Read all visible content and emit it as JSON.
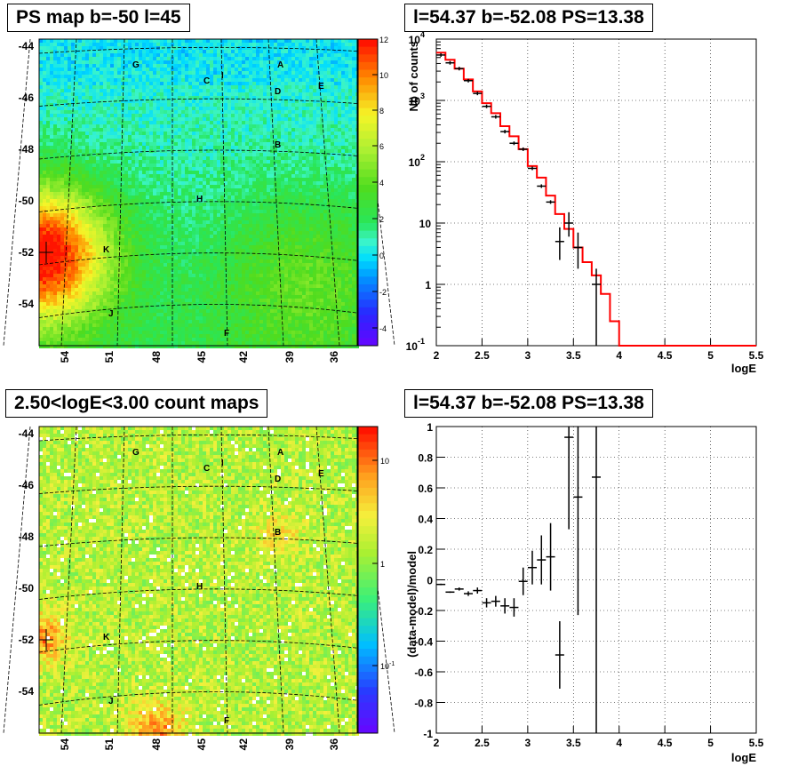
{
  "titles": {
    "ps_map": "PS map b=-50 l=45",
    "count_map": "2.50<logE<3.00 count maps",
    "spectrum": "l=54.37 b=-52.08 PS=13.38",
    "residual": "l=54.37 b=-52.08 PS=13.38"
  },
  "map": {
    "lat_ticks": [
      "-44",
      "-46",
      "-48",
      "-50",
      "-52",
      "-54"
    ],
    "lon_ticks": [
      "54",
      "51",
      "48",
      "45",
      "42",
      "39",
      "36"
    ],
    "sources": [
      {
        "name": "A"
      },
      {
        "name": "B"
      },
      {
        "name": "C"
      },
      {
        "name": "D"
      },
      {
        "name": "E"
      },
      {
        "name": "F"
      },
      {
        "name": "G"
      },
      {
        "name": "H"
      },
      {
        "name": "I"
      },
      {
        "name": "J"
      },
      {
        "name": "K"
      }
    ],
    "ps_palette_ticks": [
      "12",
      "10",
      "8",
      "6",
      "4",
      "2",
      "0",
      "-2",
      "-4"
    ],
    "count_palette_ticks": [
      "10",
      "1",
      "10"
    ],
    "count_palette_exps": [
      "",
      "",
      "-1"
    ]
  },
  "chart_data": [
    {
      "type": "line",
      "title": "l=54.37 b=-52.08 PS=13.38",
      "xlabel": "logE",
      "ylabel": "Nb of counts",
      "log_y": true,
      "xlim": [
        2,
        5.5
      ],
      "ylim": [
        0.1,
        10000
      ],
      "grid": true,
      "x_ticks": [
        "2",
        "2.5",
        "3",
        "3.5",
        "4",
        "4.5",
        "5",
        "5.5"
      ],
      "y_ticks": [
        {
          "base": "10",
          "exp": "-1"
        },
        {
          "base": "1",
          "exp": ""
        },
        {
          "base": "10",
          "exp": ""
        },
        {
          "base": "10",
          "exp": "2"
        },
        {
          "base": "10",
          "exp": "3"
        },
        {
          "base": "10",
          "exp": "4"
        }
      ],
      "model_color": "#ff0000",
      "model_bins": [
        2.0,
        2.1,
        2.2,
        2.3,
        2.4,
        2.5,
        2.6,
        2.7,
        2.8,
        2.9,
        3.0,
        3.1,
        3.2,
        3.3,
        3.4,
        3.5,
        3.6,
        3.7,
        3.8,
        3.9,
        4.0,
        5.5
      ],
      "model_values": [
        6000,
        4600,
        3300,
        2200,
        1400,
        900,
        620,
        380,
        260,
        160,
        85,
        55,
        28,
        14,
        8,
        4,
        2.3,
        1.4,
        0.7,
        0.25,
        0.1
      ],
      "data_points": [
        {
          "x": 2.05,
          "y": 5500
        },
        {
          "x": 2.15,
          "y": 4100
        },
        {
          "x": 2.25,
          "y": 3300
        },
        {
          "x": 2.35,
          "y": 2100
        },
        {
          "x": 2.45,
          "y": 1300
        },
        {
          "x": 2.55,
          "y": 800
        },
        {
          "x": 2.65,
          "y": 540
        },
        {
          "x": 2.75,
          "y": 310
        },
        {
          "x": 2.85,
          "y": 200
        },
        {
          "x": 2.95,
          "y": 160
        },
        {
          "x": 3.05,
          "y": 78
        },
        {
          "x": 3.15,
          "y": 40
        },
        {
          "x": 3.25,
          "y": 22
        },
        {
          "x": 3.35,
          "y": 5,
          "lo": 2.5,
          "hi": 8.5
        },
        {
          "x": 3.45,
          "y": 10,
          "lo": 6,
          "hi": 15
        },
        {
          "x": 3.55,
          "y": 4,
          "lo": 1.8,
          "hi": 7
        },
        {
          "x": 3.75,
          "y": 1,
          "lo": 0.1,
          "hi": 1.8
        }
      ]
    },
    {
      "type": "scatter",
      "title": "l=54.37 b=-52.08 PS=13.38",
      "xlabel": "logE",
      "ylabel": "(data-model)/model",
      "xlim": [
        2,
        5.5
      ],
      "ylim": [
        -1,
        1
      ],
      "grid": true,
      "x_ticks": [
        "2",
        "2.5",
        "3",
        "3.5",
        "4",
        "4.5",
        "5",
        "5.5"
      ],
      "y_ticks": [
        "-1",
        "-0.8",
        "-0.6",
        "-0.4",
        "-0.2",
        "0",
        "0.2",
        "0.4",
        "0.6",
        "0.8",
        "1"
      ],
      "points": [
        {
          "x": 2.05,
          "y": -0.03,
          "err": 0.005
        },
        {
          "x": 2.15,
          "y": -0.08,
          "err": 0.005
        },
        {
          "x": 2.25,
          "y": -0.06,
          "err": 0.01
        },
        {
          "x": 2.35,
          "y": -0.09,
          "err": 0.015
        },
        {
          "x": 2.45,
          "y": -0.07,
          "err": 0.02
        },
        {
          "x": 2.55,
          "y": -0.15,
          "err": 0.03
        },
        {
          "x": 2.65,
          "y": -0.14,
          "err": 0.035
        },
        {
          "x": 2.75,
          "y": -0.17,
          "err": 0.05
        },
        {
          "x": 2.85,
          "y": -0.18,
          "err": 0.06
        },
        {
          "x": 2.95,
          "y": -0.01,
          "err": 0.09
        },
        {
          "x": 3.05,
          "y": 0.08,
          "err": 0.11
        },
        {
          "x": 3.15,
          "y": 0.13,
          "err": 0.16
        },
        {
          "x": 3.25,
          "y": 0.15,
          "err": 0.22
        },
        {
          "x": 3.35,
          "y": -0.49,
          "err": 0.22
        },
        {
          "x": 3.45,
          "y": 0.93,
          "err": 0.6
        },
        {
          "x": 3.55,
          "y": 0.54,
          "err": 0.77
        },
        {
          "x": 3.75,
          "y": 0.67,
          "err": 1.67
        }
      ]
    }
  ]
}
